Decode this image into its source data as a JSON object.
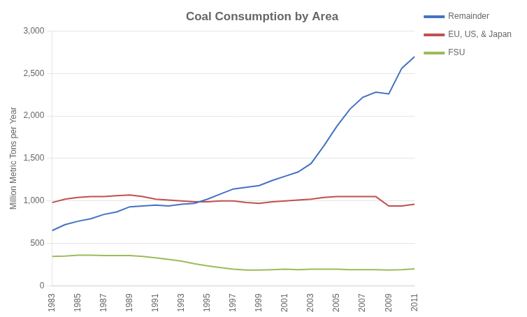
{
  "chart_data": {
    "type": "line",
    "title": "Coal Consumption by Area",
    "ylabel": "Million Metric Tons per Year",
    "x": [
      1983,
      1984,
      1985,
      1986,
      1987,
      1988,
      1989,
      1990,
      1991,
      1992,
      1993,
      1994,
      1995,
      1996,
      1997,
      1998,
      1999,
      2000,
      2001,
      2002,
      2003,
      2004,
      2005,
      2006,
      2007,
      2008,
      2009,
      2010,
      2011
    ],
    "series": [
      {
        "name": "Remainder",
        "color": "#4472C4",
        "values": [
          650,
          720,
          760,
          790,
          840,
          870,
          930,
          940,
          950,
          940,
          960,
          970,
          1020,
          1080,
          1140,
          1160,
          1180,
          1240,
          1290,
          1340,
          1440,
          1650,
          1880,
          2080,
          2220,
          2280,
          2260,
          2560,
          2700
        ]
      },
      {
        "name": "EU, US, & Japan",
        "color": "#C0504D",
        "values": [
          980,
          1020,
          1040,
          1050,
          1050,
          1060,
          1070,
          1050,
          1020,
          1010,
          1000,
          990,
          990,
          1000,
          1000,
          980,
          970,
          990,
          1000,
          1010,
          1020,
          1040,
          1050,
          1050,
          1050,
          1050,
          940,
          940,
          960
        ]
      },
      {
        "name": "FSU",
        "color": "#9BBB59",
        "values": [
          345,
          350,
          360,
          360,
          355,
          355,
          355,
          345,
          330,
          310,
          290,
          260,
          235,
          215,
          195,
          185,
          185,
          190,
          195,
          190,
          195,
          195,
          195,
          190,
          190,
          190,
          185,
          190,
          200
        ]
      }
    ],
    "xlim": [
      1983,
      2011
    ],
    "xticks": [
      1983,
      1985,
      1987,
      1989,
      1991,
      1993,
      1995,
      1997,
      1999,
      2001,
      2003,
      2005,
      2007,
      2009,
      2011
    ],
    "ylim": [
      0,
      3000
    ],
    "yticks": [
      0,
      500,
      {
        "value": 1000,
        "label": "1,000"
      },
      {
        "value": 1500,
        "label": "1,500"
      },
      {
        "value": 2000,
        "label": "2,000"
      },
      {
        "value": 2500,
        "label": "2,500"
      },
      {
        "value": 3000,
        "label": "3,000"
      }
    ],
    "grid": "y",
    "legend": "right"
  }
}
